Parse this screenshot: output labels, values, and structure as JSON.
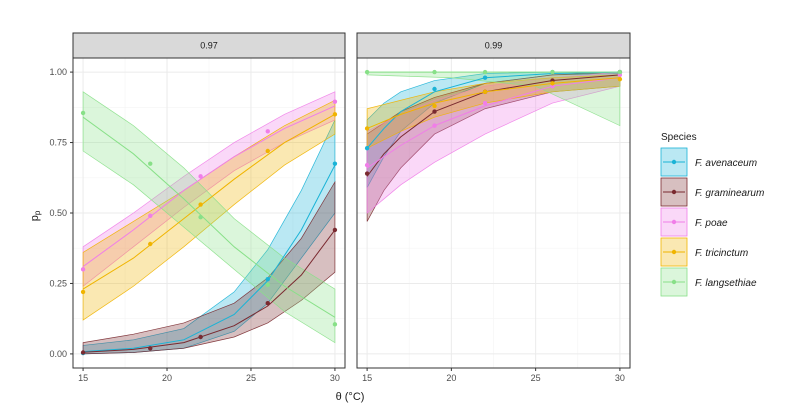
{
  "chart_data": {
    "type": "line",
    "xlabel": "θ (°C)",
    "ylabel": "pp",
    "ylabel_main": "p",
    "ylabel_sub": "p",
    "xlim": [
      14.4,
      30.6
    ],
    "ylim": [
      -0.05,
      1.05
    ],
    "x_ticks": [
      15,
      20,
      25,
      30
    ],
    "x_tick_labels": [
      "15",
      "20",
      "25",
      "30"
    ],
    "y_ticks": [
      0,
      0.25,
      0.5,
      0.75,
      1
    ],
    "y_tick_labels": [
      "0.00",
      "0.25",
      "0.50",
      "0.75",
      "1.00"
    ],
    "grid": true,
    "legend": {
      "title": "Species",
      "placement": "right",
      "entries": [
        {
          "key": "avenaceum",
          "label": "F. avenaceum",
          "color": "#1ab3d6"
        },
        {
          "key": "graminearum",
          "label": "F. graminearum",
          "color": "#7a2a30"
        },
        {
          "key": "poae",
          "label": "F. poae",
          "color": "#f07ee8"
        },
        {
          "key": "tricinctum",
          "label": "F. tricinctum",
          "color": "#f0b400"
        },
        {
          "key": "langsethiae",
          "label": "F. langsethiae",
          "color": "#88e088"
        }
      ]
    },
    "facets": [
      {
        "label": "0.97",
        "series": [
          {
            "key": "avenaceum",
            "points": {
              "x": [
                15,
                19,
                22,
                26,
                30
              ],
              "y": [
                0.003,
                0.02,
                0.06,
                0.265,
                0.675
              ]
            },
            "fit": {
              "x": [
                15,
                18,
                21,
                24,
                26,
                28,
                30
              ],
              "y": [
                0.008,
                0.02,
                0.05,
                0.14,
                0.26,
                0.44,
                0.67
              ]
            },
            "lower": [
              0.0,
              0.005,
              0.02,
              0.08,
              0.18,
              0.34,
              0.5
            ],
            "upper": [
              0.03,
              0.05,
              0.09,
              0.22,
              0.37,
              0.58,
              0.83
            ]
          },
          {
            "key": "graminearum",
            "points": {
              "x": [
                15,
                19,
                22,
                26,
                30
              ],
              "y": [
                0.005,
                0.02,
                0.06,
                0.18,
                0.44
              ]
            },
            "fit": {
              "x": [
                15,
                18,
                21,
                24,
                26,
                28,
                30
              ],
              "y": [
                0.006,
                0.016,
                0.04,
                0.1,
                0.17,
                0.28,
                0.44
              ]
            },
            "lower": [
              0.0,
              0.005,
              0.02,
              0.06,
              0.11,
              0.19,
              0.29
            ],
            "upper": [
              0.04,
              0.07,
              0.11,
              0.18,
              0.27,
              0.41,
              0.61
            ]
          },
          {
            "key": "poae",
            "points": {
              "x": [
                15,
                19,
                22,
                26,
                30
              ],
              "y": [
                0.3,
                0.49,
                0.63,
                0.79,
                0.895
              ]
            },
            "fit": {
              "x": [
                15,
                18,
                21,
                24,
                27,
                30
              ],
              "y": [
                0.31,
                0.44,
                0.58,
                0.7,
                0.8,
                0.88
              ]
            },
            "lower": [
              0.24,
              0.38,
              0.52,
              0.65,
              0.75,
              0.83
            ],
            "upper": [
              0.38,
              0.5,
              0.63,
              0.75,
              0.85,
              0.93
            ]
          },
          {
            "key": "tricinctum",
            "points": {
              "x": [
                15,
                19,
                22,
                26,
                30
              ],
              "y": [
                0.22,
                0.39,
                0.53,
                0.72,
                0.85
              ]
            },
            "fit": {
              "x": [
                15,
                18,
                21,
                24,
                27,
                30
              ],
              "y": [
                0.23,
                0.34,
                0.48,
                0.62,
                0.75,
                0.85
              ]
            },
            "lower": [
              0.12,
              0.24,
              0.38,
              0.53,
              0.67,
              0.78
            ],
            "upper": [
              0.36,
              0.47,
              0.58,
              0.7,
              0.81,
              0.9
            ]
          },
          {
            "key": "langsethiae",
            "points": {
              "x": [
                15,
                19,
                22,
                26,
                30
              ],
              "y": [
                0.855,
                0.675,
                0.485,
                0.245,
                0.105
              ]
            },
            "fit": {
              "x": [
                15,
                18,
                21,
                24,
                27,
                30
              ],
              "y": [
                0.84,
                0.71,
                0.55,
                0.38,
                0.24,
                0.13
              ]
            },
            "lower": [
              0.72,
              0.6,
              0.45,
              0.3,
              0.15,
              0.04
            ],
            "upper": [
              0.93,
              0.81,
              0.66,
              0.48,
              0.34,
              0.23
            ]
          }
        ]
      },
      {
        "label": "0.99",
        "series": [
          {
            "key": "avenaceum",
            "points": {
              "x": [
                15,
                19,
                22,
                26,
                30
              ],
              "y": [
                0.73,
                0.94,
                0.98,
                1.0,
                1.0
              ]
            },
            "fit": {
              "x": [
                15,
                16,
                17,
                19,
                22,
                26,
                30
              ],
              "y": [
                0.73,
                0.8,
                0.86,
                0.93,
                0.98,
                0.995,
                1.0
              ]
            },
            "lower": [
              0.59,
              0.7,
              0.79,
              0.89,
              0.96,
              0.99,
              0.995
            ],
            "upper": [
              0.83,
              0.89,
              0.93,
              0.97,
              0.995,
              1.0,
              1.0
            ]
          },
          {
            "key": "graminearum",
            "points": {
              "x": [
                15,
                19,
                22,
                26,
                30
              ],
              "y": [
                0.64,
                0.86,
                0.93,
                0.97,
                1.0
              ]
            },
            "fit": {
              "x": [
                15,
                16,
                17,
                19,
                22,
                26,
                30
              ],
              "y": [
                0.63,
                0.71,
                0.77,
                0.86,
                0.93,
                0.97,
                0.99
              ]
            },
            "lower": [
              0.47,
              0.58,
              0.66,
              0.78,
              0.87,
              0.93,
              0.95
            ],
            "upper": [
              0.78,
              0.82,
              0.86,
              0.91,
              0.96,
              0.99,
              1.0
            ]
          },
          {
            "key": "poae",
            "points": {
              "x": [
                15,
                19,
                22,
                26,
                30
              ],
              "y": [
                0.67,
                0.81,
                0.89,
                0.95,
                0.99
              ]
            },
            "fit": {
              "x": [
                15,
                17,
                19,
                22,
                26,
                30
              ],
              "y": [
                0.66,
                0.74,
                0.81,
                0.88,
                0.95,
                0.98
              ]
            },
            "lower": [
              0.5,
              0.6,
              0.68,
              0.78,
              0.89,
              0.95
            ],
            "upper": [
              0.79,
              0.85,
              0.9,
              0.95,
              0.98,
              1.0
            ]
          },
          {
            "key": "tricinctum",
            "points": {
              "x": [
                15,
                19,
                22,
                26,
                30
              ],
              "y": [
                0.8,
                0.88,
                0.93,
                0.96,
                0.975
              ]
            },
            "fit": {
              "x": [
                15,
                17,
                19,
                22,
                26,
                30
              ],
              "y": [
                0.8,
                0.85,
                0.89,
                0.93,
                0.96,
                0.98
              ]
            },
            "lower": [
              0.73,
              0.79,
              0.84,
              0.89,
              0.93,
              0.95
            ],
            "upper": [
              0.87,
              0.9,
              0.93,
              0.96,
              0.98,
              0.99
            ]
          },
          {
            "key": "langsethiae",
            "points": {
              "x": [
                15,
                19,
                22,
                26,
                30
              ],
              "y": [
                1.0,
                1.0,
                1.0,
                1.0,
                1.0
              ]
            },
            "fit": {
              "x": [
                15,
                20,
                25,
                30
              ],
              "y": [
                1.0,
                1.0,
                1.0,
                1.0
              ]
            },
            "lower": [
              0.99,
              0.98,
              0.95,
              0.81
            ],
            "upper": [
              1.0,
              1.0,
              1.0,
              1.0
            ]
          }
        ]
      }
    ]
  }
}
